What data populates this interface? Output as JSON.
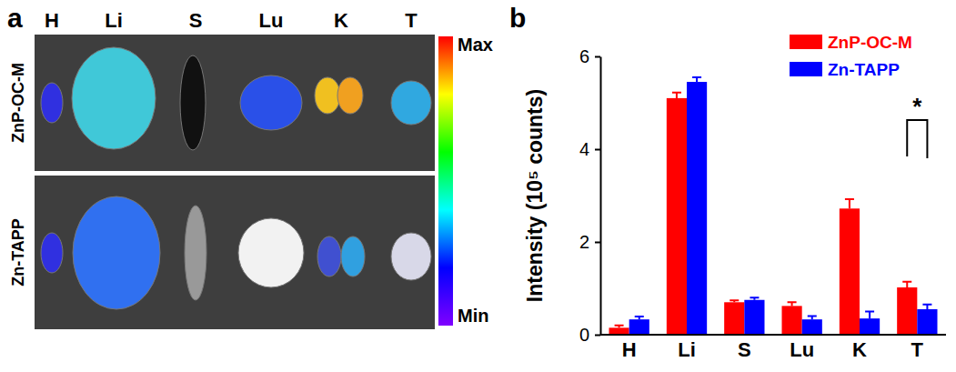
{
  "image_panel": {
    "panel_label": "a",
    "columns": [
      "H",
      "Li",
      "S",
      "Lu",
      "K",
      "T"
    ],
    "rows": [
      "ZnP-OC-M",
      "Zn-TAPP"
    ],
    "color_bar": {
      "max_label": "Max",
      "min_label": "Min"
    }
  },
  "chart_data": {
    "type": "bar",
    "panel_label": "b",
    "categories": [
      "H",
      "Li",
      "S",
      "Lu",
      "K",
      "T"
    ],
    "series": [
      {
        "name": "ZnP-OC-M",
        "color": "#ff0000",
        "values": [
          0.15,
          5.1,
          0.7,
          0.62,
          2.72,
          1.02
        ],
        "errors": [
          0.05,
          0.12,
          0.04,
          0.08,
          0.2,
          0.12
        ]
      },
      {
        "name": "Zn-TAPP",
        "color": "#0000ff",
        "values": [
          0.33,
          5.45,
          0.75,
          0.33,
          0.35,
          0.55
        ],
        "errors": [
          0.06,
          0.1,
          0.05,
          0.07,
          0.15,
          0.1
        ]
      }
    ],
    "y_label": "Intensity (10⁵ counts)",
    "ylim": [
      0,
      6
    ],
    "yticks": [
      0,
      2,
      4,
      6
    ],
    "legend": "top-right",
    "annotations": [
      {
        "text": "*",
        "category": "T"
      }
    ]
  }
}
